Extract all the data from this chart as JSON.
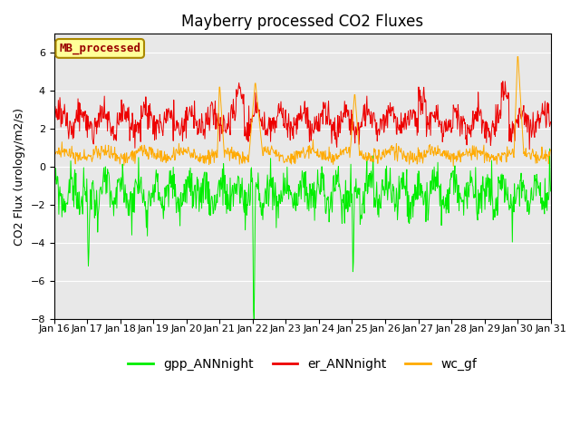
{
  "title": "Mayberry processed CO2 Fluxes",
  "ylabel": "CO2 Flux (urology/m2/s)",
  "ylim": [
    -8,
    7
  ],
  "yticks": [
    -8,
    -6,
    -4,
    -2,
    0,
    2,
    4,
    6
  ],
  "xlim_days": [
    16,
    31
  ],
  "xtick_labels": [
    "Jan 16",
    "Jan 17",
    "Jan 18",
    "Jan 19",
    "Jan 20",
    "Jan 21",
    "Jan 22",
    "Jan 23",
    "Jan 24",
    "Jan 25",
    "Jan 26",
    "Jan 27",
    "Jan 28",
    "Jan 29",
    "Jan 30",
    "Jan 31"
  ],
  "color_gpp": "#00ee00",
  "color_er": "#ee0000",
  "color_wc": "#ffaa00",
  "legend_labels": [
    "gpp_ANNnight",
    "er_ANNnight",
    "wc_gf"
  ],
  "annotation_text": "MB_processed",
  "annotation_bg": "#ffff99",
  "annotation_fg": "#990000",
  "background_color": "#e8e8e8",
  "n_points": 960,
  "seed": 99,
  "title_fontsize": 12,
  "tick_fontsize": 8,
  "ylabel_fontsize": 9
}
